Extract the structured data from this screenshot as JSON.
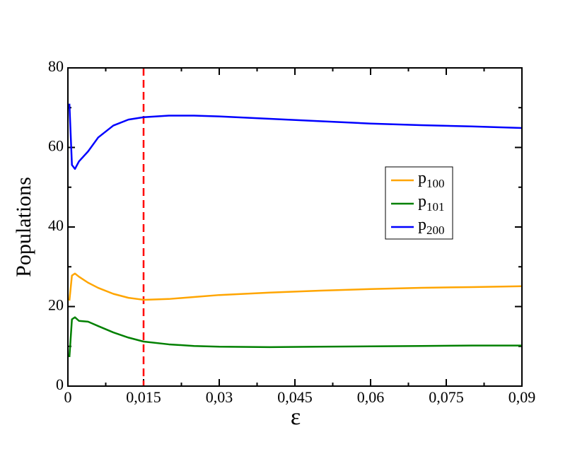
{
  "chart_data": {
    "type": "line",
    "xlabel": "ε",
    "ylabel": "Populations",
    "x": [
      0.0003,
      0.0008,
      0.0014,
      0.0022,
      0.004,
      0.006,
      0.009,
      0.012,
      0.015,
      0.02,
      0.025,
      0.03,
      0.04,
      0.05,
      0.06,
      0.07,
      0.08,
      0.09
    ],
    "series": [
      {
        "name": "p100",
        "color": "#ffa500",
        "values": [
          21.5,
          27.8,
          28.3,
          27.5,
          26,
          24.7,
          23.2,
          22.2,
          21.7,
          21.9,
          22.4,
          22.9,
          23.5,
          24,
          24.4,
          24.7,
          24.9,
          25.1
        ]
      },
      {
        "name": "p101",
        "color": "#008000",
        "values": [
          7.3,
          16.8,
          17.3,
          16.4,
          16.2,
          15.1,
          13.5,
          12.2,
          11.2,
          10.5,
          10.1,
          9.9,
          9.8,
          9.9,
          10,
          10.1,
          10.2,
          10.2
        ]
      },
      {
        "name": "p200",
        "color": "#0000ff",
        "values": [
          71,
          55.6,
          54.6,
          56.5,
          59,
          62.5,
          65.5,
          67,
          67.6,
          68,
          68,
          67.8,
          67.2,
          66.6,
          66,
          65.6,
          65.3,
          64.9
        ]
      }
    ],
    "xlim": [
      0,
      0.09
    ],
    "xticks": [
      0,
      {
        "value": 0.015,
        "label": "0,015"
      },
      {
        "value": 0.03,
        "label": "0,03"
      },
      {
        "value": 0.045,
        "label": "0,045"
      },
      {
        "value": 0.06,
        "label": "0,06"
      },
      {
        "value": 0.075,
        "label": "0,075"
      },
      {
        "value": 0.09,
        "label": "0,09"
      }
    ],
    "xminorticks": [
      0.0075,
      0.0225,
      0.0375,
      0.0525,
      0.0675,
      0.0825
    ],
    "ylim": [
      0,
      80
    ],
    "yticks": [
      0,
      20,
      40,
      60,
      80
    ],
    "yminorticks": [
      10,
      30,
      50,
      70
    ],
    "vline": {
      "x": 0.015,
      "color": "#ff0000"
    },
    "legend": "right"
  }
}
